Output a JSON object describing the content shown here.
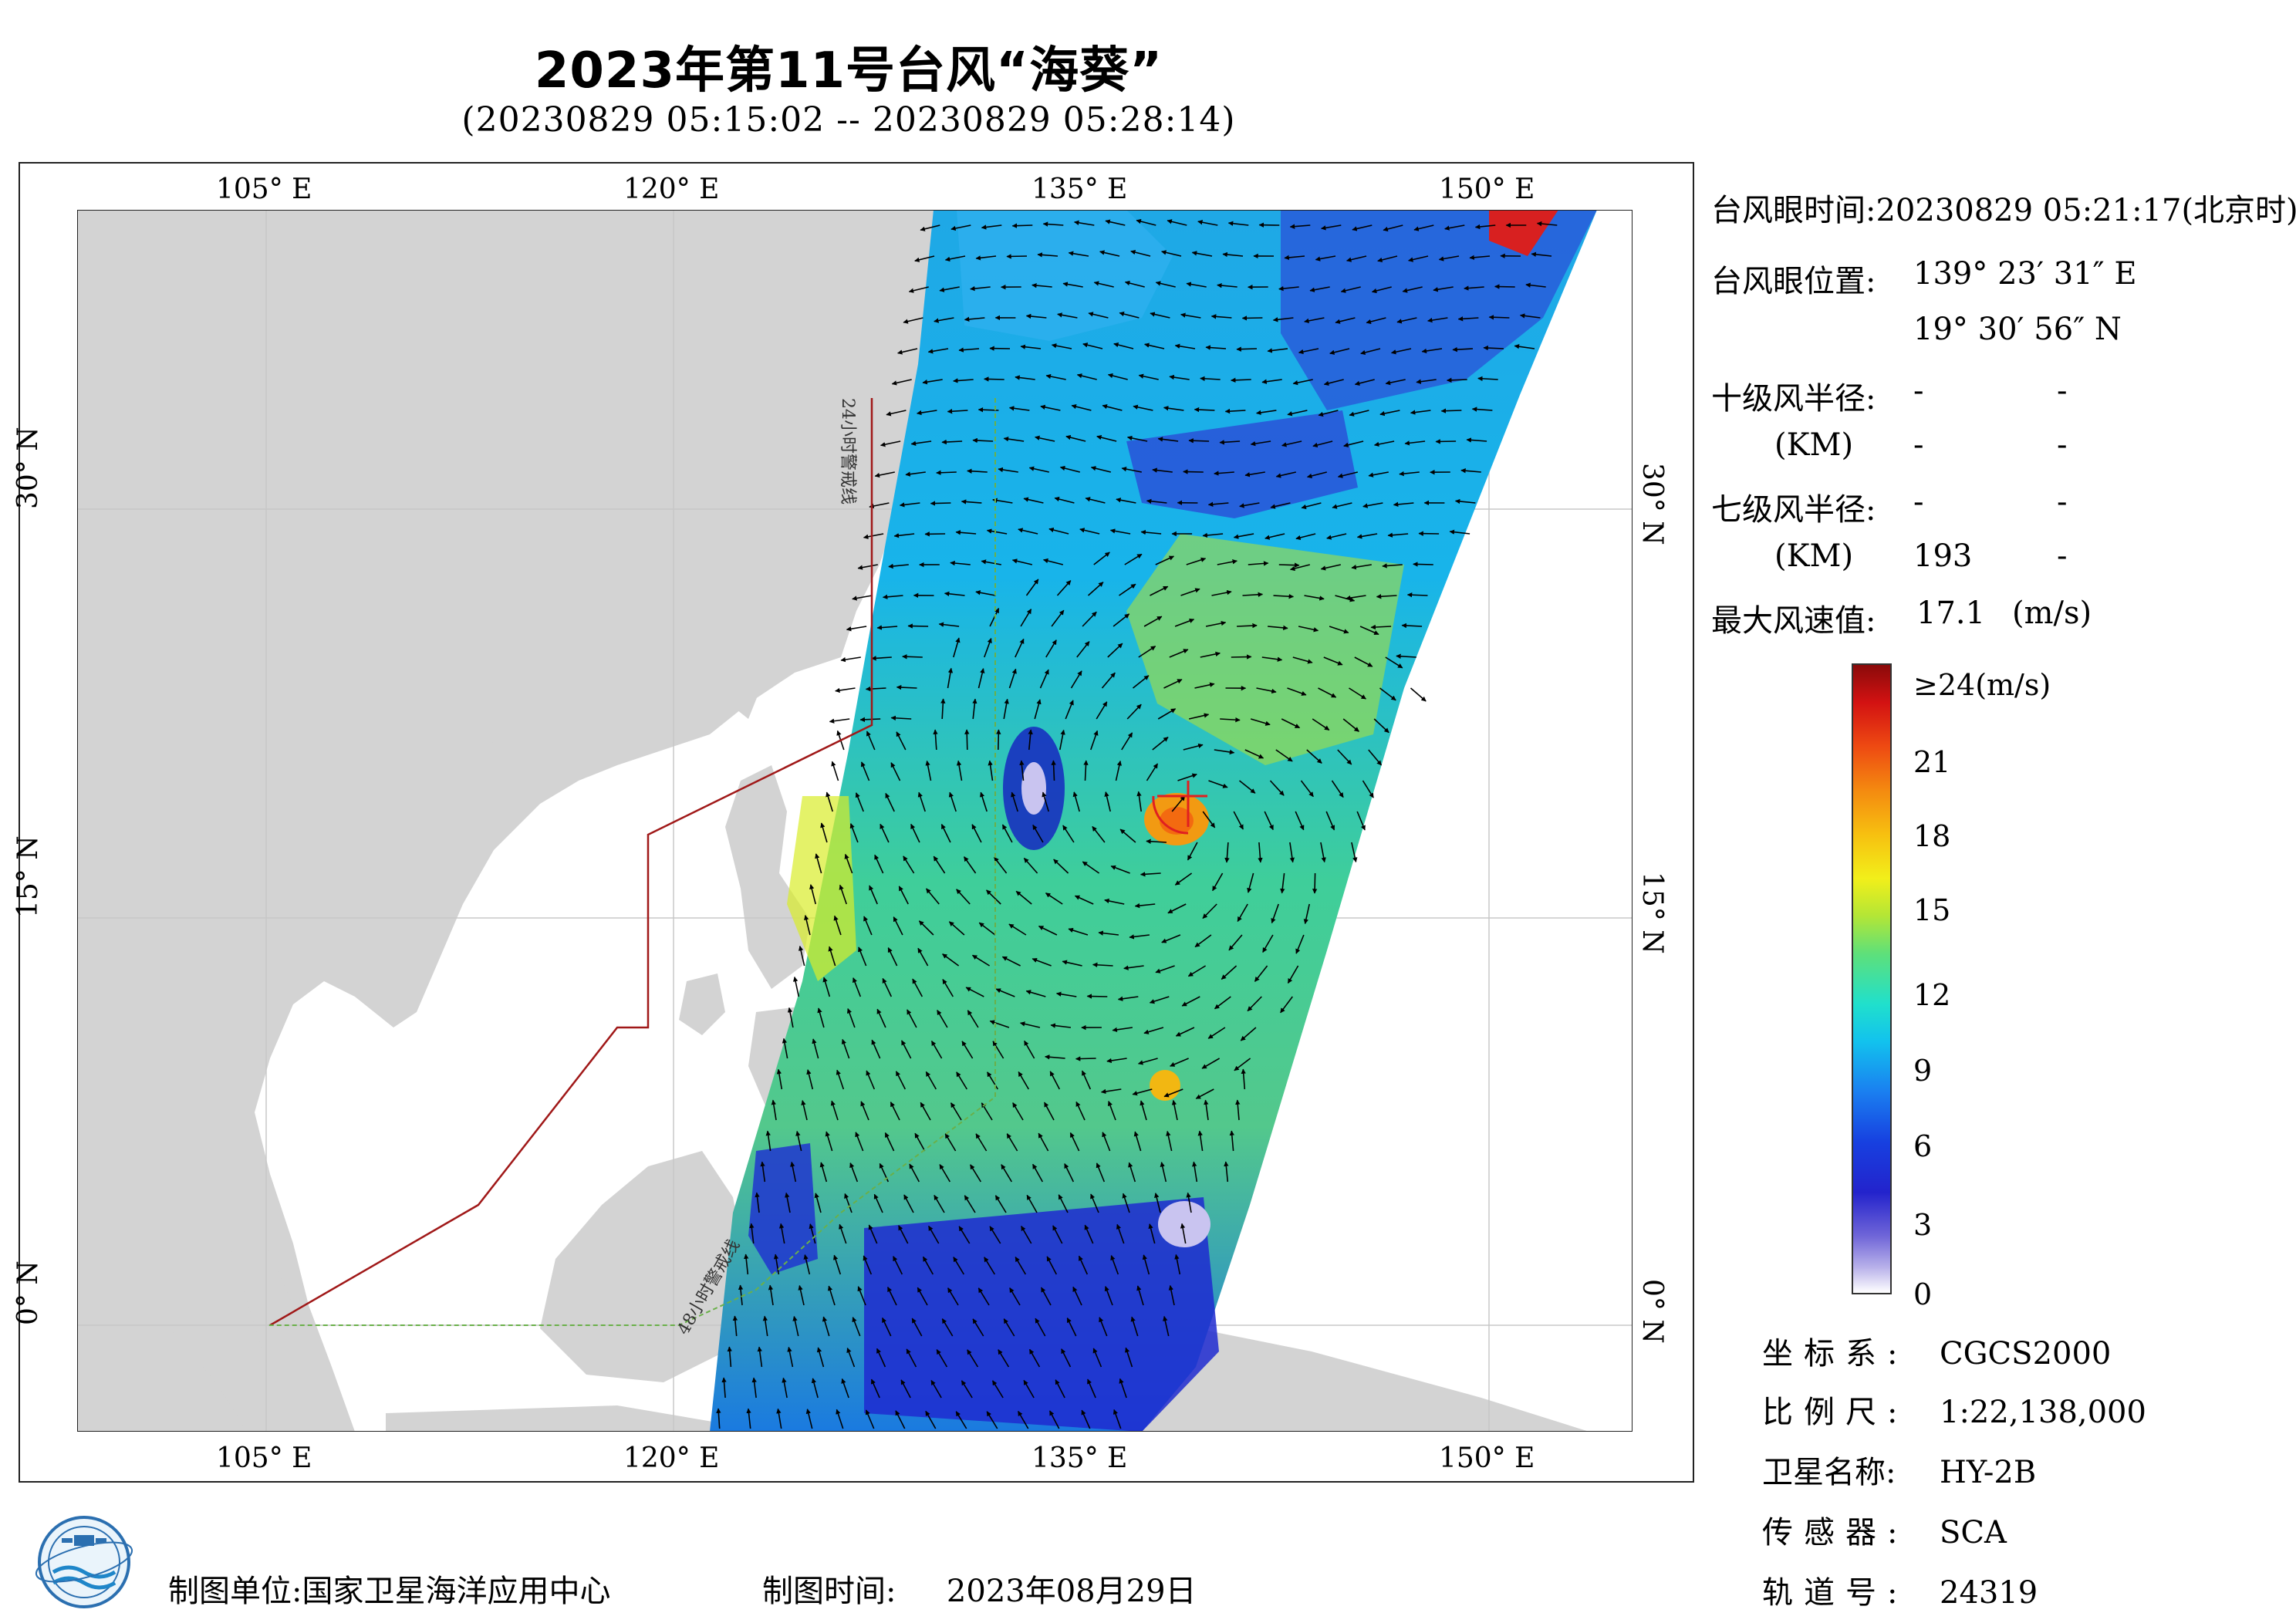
{
  "header": {
    "title": "2023年第11号台风“海葵”",
    "subtitle": "(20230829 05:15:02 -- 20230829 05:28:14)"
  },
  "map": {
    "lon_labels": [
      "105° E",
      "120° E",
      "135° E",
      "150° E"
    ],
    "lat_labels": [
      "30° N",
      "15° N",
      "0° N"
    ],
    "warning_24h": "24小时警戒线",
    "warning_48h": "48小时警戒线",
    "colors": {
      "ocean": "#ffffff",
      "land": "#d3d3d3",
      "grid": "#c8c8c8",
      "warning_24h": "#a01818",
      "warning_48h": "#6ab04a",
      "arrow": "#000000",
      "eye": "#e02020"
    }
  },
  "info": {
    "eye_time_label": "台风眼时间:",
    "eye_time": "20230829 05:21:17(北京时)",
    "eye_pos_label": "台风眼位置:",
    "eye_lon": "139° 23′ 31″ E",
    "eye_lat": "19° 30′ 56″ N",
    "r10_label": "十级风半径:",
    "r7_label": "七级风半径:",
    "km_label": "(KM)",
    "r10_values": [
      "-",
      "-",
      "-",
      "-"
    ],
    "r7_values": [
      "-",
      "-",
      "193",
      "-"
    ],
    "max_wind_label": "最大风速值:",
    "max_wind": "17.1",
    "max_wind_unit": "(m/s)"
  },
  "colorbar": {
    "top_label": "≥24(m/s)",
    "labels": [
      "21",
      "18",
      "15",
      "12",
      "9",
      "6",
      "3",
      "0"
    ]
  },
  "metadata": [
    {
      "key": "坐标系:",
      "value": "CGCS2000"
    },
    {
      "key": "比例尺:",
      "value": "1:22,138,000"
    },
    {
      "key": "卫星名称:",
      "value": "HY-2B"
    },
    {
      "key": "传感器:",
      "value": "SCA"
    },
    {
      "key": "轨道号:",
      "value": "24319"
    }
  ],
  "footer": {
    "unit_label": "制图单位:国家卫星海洋应用中心",
    "time_label": "制图时间:",
    "time_value": "2023年08月29日"
  },
  "logo_icon": "soa-logo-icon"
}
